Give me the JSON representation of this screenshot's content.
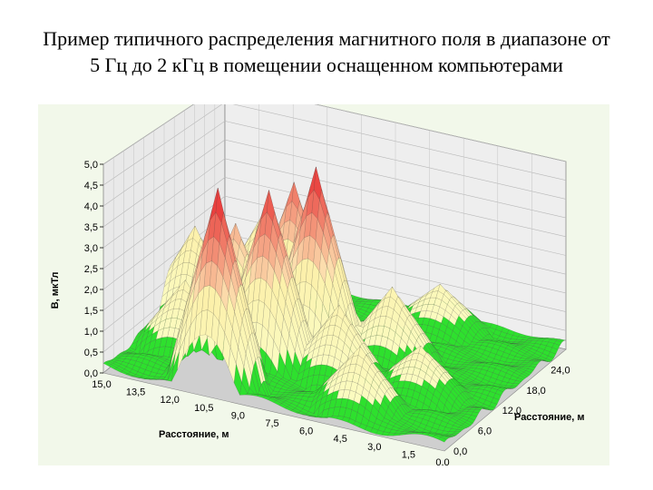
{
  "slide": {
    "title": "Пример типичного распределения магнитного поля в диапазоне от 5 Гц до 2 кГц в помещении оснащенном компьютерами"
  },
  "chart_data": {
    "type": "surface3d",
    "title": "Пример типичного распределения магнитного поля в диапазоне от 5 Гц до 2 кГц в помещении оснащенном компьютерами",
    "zlabel": "B, мкТл",
    "xlabel": "Расстояние, м",
    "ylabel": "Расстояние, м",
    "zlim": [
      0,
      5
    ],
    "xlim": [
      0,
      15
    ],
    "ylim": [
      0,
      30
    ],
    "z_ticks": [
      "0,0",
      "0,5",
      "1,0",
      "1,5",
      "2,0",
      "2,5",
      "3,0",
      "3,5",
      "4,0",
      "4,5",
      "5,0"
    ],
    "x_ticks": [
      "15,0",
      "13,5",
      "12,0",
      "10,5",
      "9,0",
      "7,5",
      "6,0",
      "4,5",
      "3,0",
      "1,5",
      "0,0"
    ],
    "y_ticks": [
      "0,0",
      "6,0",
      "12,0",
      "18,0",
      "24,0"
    ],
    "peaks": [
      {
        "x": 10.5,
        "y": 3.0,
        "value": 4.8
      },
      {
        "x": 9.5,
        "y": 10.0,
        "value": 4.4
      },
      {
        "x": 8.5,
        "y": 16.0,
        "value": 4.7
      },
      {
        "x": 11.5,
        "y": 13.0,
        "value": 3.1
      },
      {
        "x": 10.0,
        "y": 19.0,
        "value": 3.9
      },
      {
        "x": 12.0,
        "y": 23.0,
        "value": 2.6
      },
      {
        "x": 11.8,
        "y": 28.5,
        "value": 2.2
      },
      {
        "x": 14.0,
        "y": 17.0,
        "value": 2.4
      },
      {
        "x": 13.0,
        "y": 9.0,
        "value": 1.8
      },
      {
        "x": 6.5,
        "y": 10.5,
        "value": 1.9
      },
      {
        "x": 5.5,
        "y": 18.0,
        "value": 1.9
      },
      {
        "x": 4.5,
        "y": 4.5,
        "value": 1.6
      },
      {
        "x": 3.0,
        "y": 11.0,
        "value": 1.3
      },
      {
        "x": 5.0,
        "y": 27.0,
        "value": 1.3
      }
    ],
    "background_level": 0.15,
    "colors": {
      "low": "#2ee02e",
      "mid": "#fbfbc0",
      "high": "#e83a3a",
      "wall": "#e9e9e9",
      "panel": "#f2f8ea"
    }
  }
}
